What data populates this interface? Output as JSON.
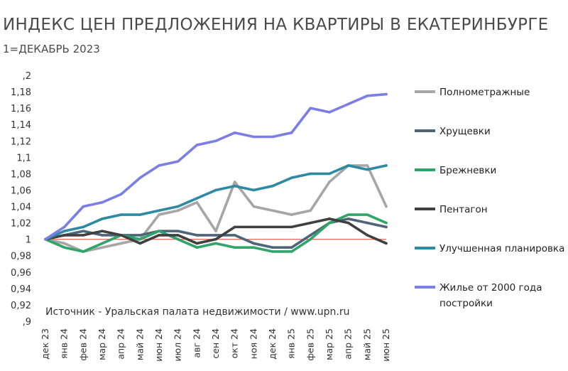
{
  "chart_data": {
    "type": "line",
    "title": "ИНДЕКС ЦЕН ПРЕДЛОЖЕНИЯ НА КВАРТИРЫ В ЕКАТЕРИНБУРГЕ",
    "subtitle": "1=ДЕКАБРЬ 2023",
    "source": "Источник - Уральская палата недвижимости / www.upn.ru",
    "ylim": [
      0.9,
      1.2
    ],
    "yticks": [
      ",9",
      "0,92",
      "0,94",
      "0,96",
      "0,98",
      "1",
      "1,02",
      "1,04",
      "1,06",
      "1,08",
      "1,1",
      "1,12",
      "1,14",
      "1,16",
      "1,18",
      ",2"
    ],
    "categories": [
      "дек 23",
      "янв 24",
      "фев 24",
      "мар 24",
      "апр 24",
      "май 24",
      "июн 24",
      "июл 24",
      "авг 24",
      "сен 24",
      "окт 24",
      "ноя 24",
      "дек 24",
      "янв 25",
      "фев 25",
      "мар 25",
      "апр 25",
      "май 25",
      "июн 25"
    ],
    "reference_line": {
      "y": 1,
      "color": "#e8574a"
    },
    "legend_position": "right",
    "grid": false,
    "series": [
      {
        "name": "Полнометражные",
        "color": "#a6a6a6",
        "values": [
          1.0,
          0.995,
          0.985,
          0.99,
          0.995,
          1.0,
          1.03,
          1.035,
          1.045,
          1.01,
          1.07,
          1.04,
          1.035,
          1.03,
          1.035,
          1.07,
          1.09,
          1.09,
          1.04
        ]
      },
      {
        "name": "Хрущевки",
        "color": "#4e6579",
        "values": [
          1.0,
          1.005,
          1.01,
          1.005,
          1.005,
          1.005,
          1.01,
          1.01,
          1.005,
          1.005,
          1.005,
          0.995,
          0.99,
          0.99,
          1.005,
          1.02,
          1.025,
          1.02,
          1.015
        ]
      },
      {
        "name": "Брежневки",
        "color": "#2fa56b",
        "values": [
          1.0,
          0.99,
          0.985,
          0.995,
          1.005,
          1.0,
          1.01,
          1.0,
          0.99,
          0.995,
          0.99,
          0.99,
          0.985,
          0.985,
          1.0,
          1.02,
          1.03,
          1.03,
          1.02
        ]
      },
      {
        "name": "Пентагон",
        "color": "#404040",
        "values": [
          1.0,
          1.005,
          1.005,
          1.01,
          1.005,
          0.995,
          1.005,
          1.005,
          0.995,
          1.0,
          1.015,
          1.015,
          1.015,
          1.015,
          1.02,
          1.025,
          1.02,
          1.005,
          0.995
        ]
      },
      {
        "name": "Улучшенная планировка",
        "color": "#2e8aa3",
        "values": [
          1.0,
          1.01,
          1.015,
          1.025,
          1.03,
          1.03,
          1.035,
          1.04,
          1.05,
          1.06,
          1.065,
          1.06,
          1.065,
          1.075,
          1.08,
          1.08,
          1.09,
          1.085,
          1.09
        ]
      },
      {
        "name": "Жилье от 2000 года постройки",
        "color": "#7b7fe5",
        "values": [
          1.0,
          1.015,
          1.04,
          1.045,
          1.055,
          1.075,
          1.09,
          1.095,
          1.115,
          1.12,
          1.13,
          1.125,
          1.125,
          1.13,
          1.16,
          1.155,
          1.165,
          1.175,
          1.177
        ]
      }
    ]
  }
}
